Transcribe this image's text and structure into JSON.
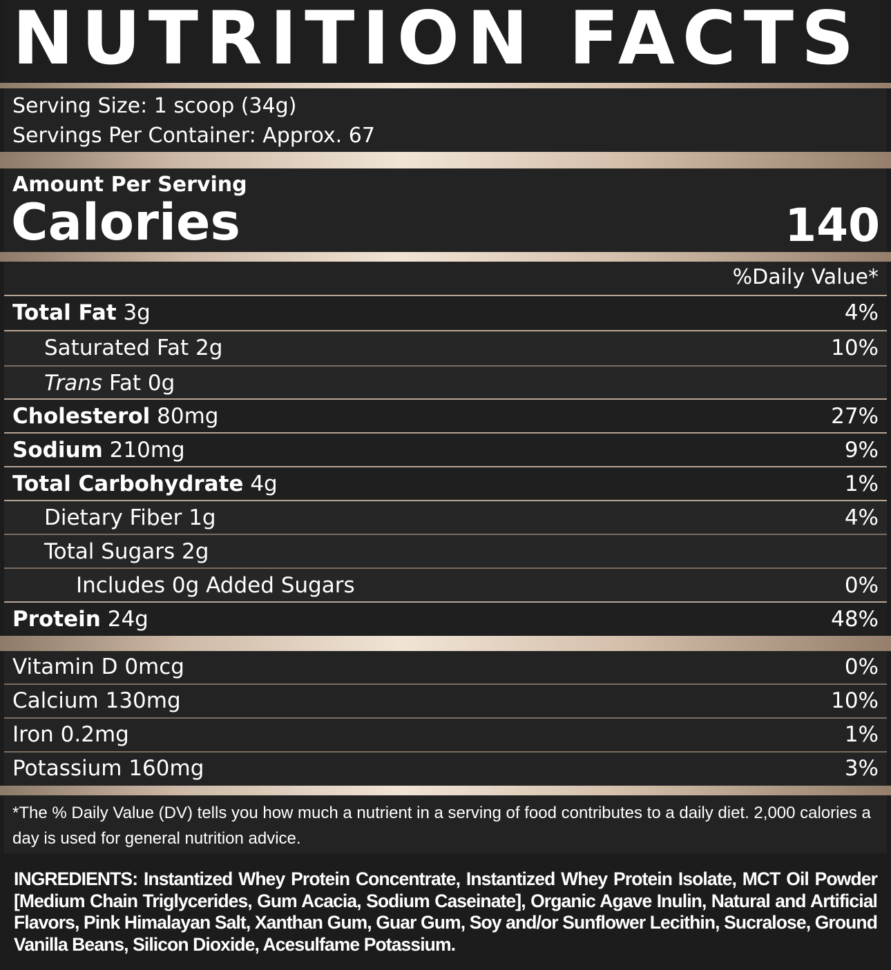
{
  "title": "NUTRITION FACTS",
  "serving": {
    "size": "Serving Size: 1 scoop (34g)",
    "per_container": "Servings Per Container: Approx. 67"
  },
  "calories": {
    "amount_label": "Amount Per Serving",
    "label": "Calories",
    "value": "140"
  },
  "daily_value_header": "%Daily Value*",
  "nutrients": [
    {
      "name": "Total Fat",
      "amount": "3g",
      "dv": "4%"
    },
    {
      "name": "Saturated Fat 2g",
      "dv": "10%"
    },
    {
      "name_italic": "Trans",
      "name": "Fat 0g",
      "dv": ""
    },
    {
      "name": "Cholesterol",
      "amount": "80mg",
      "dv": "27%"
    },
    {
      "name": "Sodium",
      "amount": "210mg",
      "dv": "9%"
    },
    {
      "name": "Total Carbohydrate",
      "amount": "4g",
      "dv": "1%"
    },
    {
      "name": "Dietary Fiber 1g",
      "dv": "4%"
    },
    {
      "name": "Total Sugars 2g",
      "dv": ""
    },
    {
      "name": "Includes 0g Added Sugars",
      "dv": "0%"
    },
    {
      "name": "Protein",
      "amount": "24g",
      "dv": "48%"
    }
  ],
  "vitamins": [
    {
      "name": "Vitamin D 0mcg",
      "dv": "0%"
    },
    {
      "name": "Calcium 130mg",
      "dv": "10%"
    },
    {
      "name": "Iron 0.2mg",
      "dv": "1%"
    },
    {
      "name": "Potassium 160mg",
      "dv": "3%"
    }
  ],
  "footnote": "*The % Daily Value (DV) tells you how much a nutrient in a serving of food contributes to a daily diet. 2,000 calories a day is used for general nutrition advice.",
  "ingredients": {
    "label": "INGREDIENTS:",
    "text": "Instantized Whey Protein Concentrate, Instantized Whey Protein Isolate, MCT Oil Powder [Medium Chain Triglycerides, Gum Acacia, Sodium Caseinate], Organic Agave Inulin, Natural and Artificial Flavors, Pink Himalayan Salt, Xanthan Gum, Guar Gum, Soy and/or Sunflower Lecithin, Sucralose, Ground Vanilla Beans, Silicon Dioxide, Acesulfame Potassium."
  },
  "colors": {
    "background": "#1c1c1c",
    "panel": "#232323",
    "gold_band": "#e6d6c4",
    "text": "#ffffff"
  }
}
